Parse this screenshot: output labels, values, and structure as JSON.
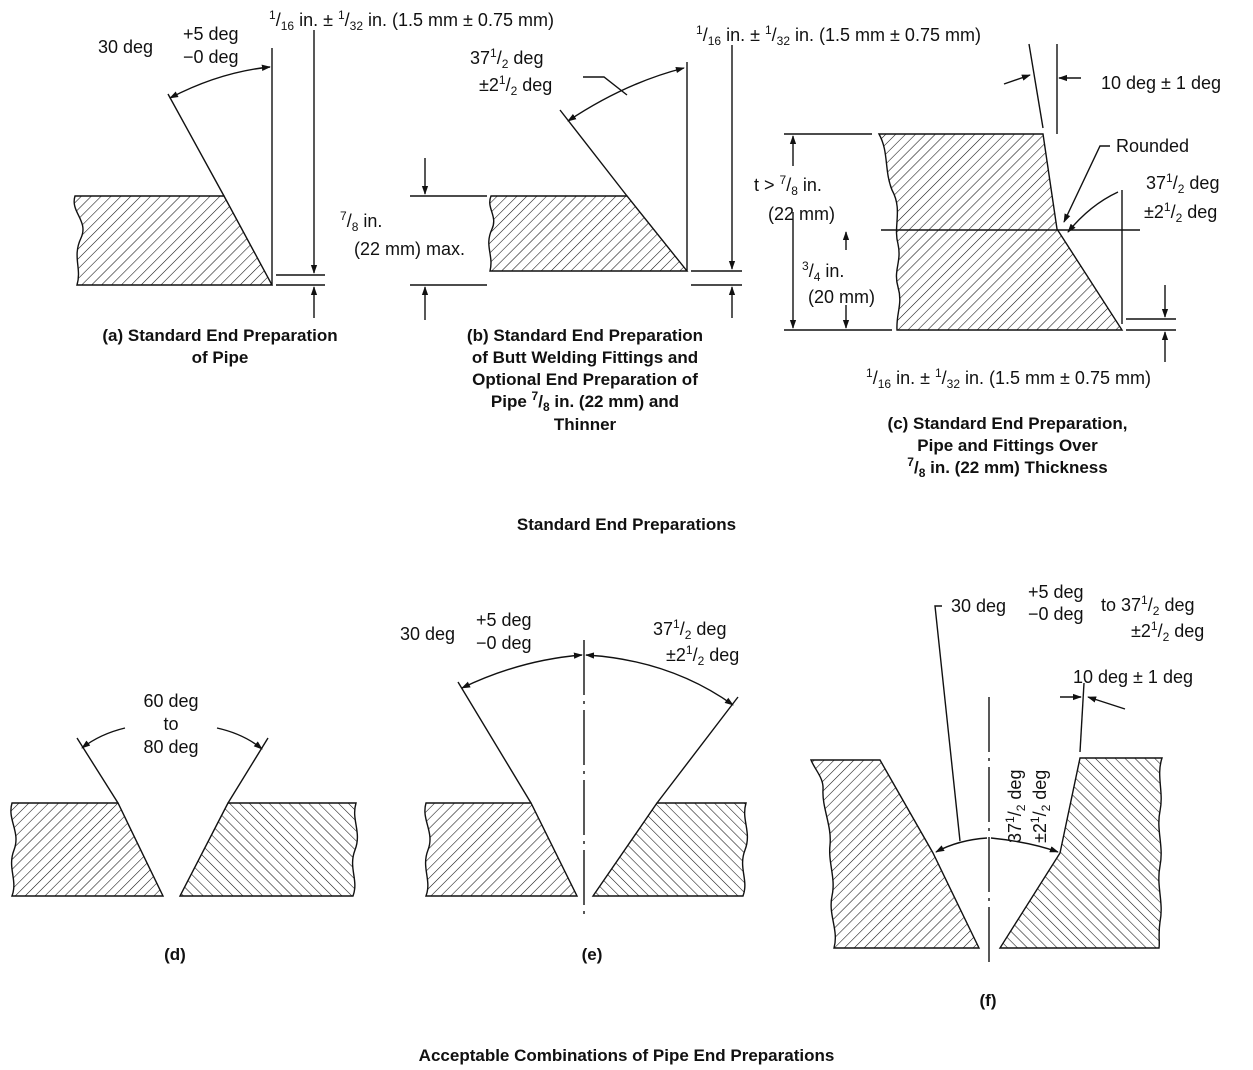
{
  "section_titles": {
    "top": "Standard End Preparations",
    "bottom": "Acceptable Combinations of Pipe End Preparations"
  },
  "fractions": {
    "one": "1",
    "sixteen": "16",
    "thirtytwo": "32",
    "seven": "7",
    "eight": "8",
    "three": "3",
    "four": "4",
    "two": "2"
  },
  "text": {
    "deg30": "30 deg",
    "plus5": "+5 deg",
    "minus0": "−0 deg",
    "gap_in_a": " in. ± ",
    "gap_in_b": " in. (1.5 mm ± 0.75 mm)",
    "deg37_a": "37",
    "deg37_b": " deg",
    "pm2_a": "±2",
    "pm2_b": " deg",
    "in7_8": " in.",
    "mm22max": "(22 mm) max.",
    "ten_deg": "10 deg ± 1 deg",
    "rounded": "Rounded",
    "t_gt": "t > ",
    "t_in": " in.",
    "mm22": "(22 mm)",
    "in3_4": " in.",
    "mm20": "(20 mm)",
    "deg60": "60 deg",
    "to": "to",
    "deg80": "80 deg",
    "to_sep": " to ",
    "rot_a": "37",
    "rot_b": " deg",
    "rot_c": "±2",
    "rot_d": " deg"
  },
  "captions": {
    "a_1": "(a) Standard End Preparation",
    "a_2": "of Pipe",
    "b_1": "(b) Standard End Preparation",
    "b_2": "of Butt Welding Fittings and",
    "b_3": "Optional End Preparation of",
    "b_4a": "Pipe ",
    "b_4b": " in. (22 mm) and",
    "b_5": "Thinner",
    "c_1": "(c) Standard End Preparation,",
    "c_2": "Pipe and Fittings Over",
    "c_3": " in. (22 mm) Thickness",
    "d": "(d)",
    "e": "(e)",
    "f": "(f)"
  }
}
